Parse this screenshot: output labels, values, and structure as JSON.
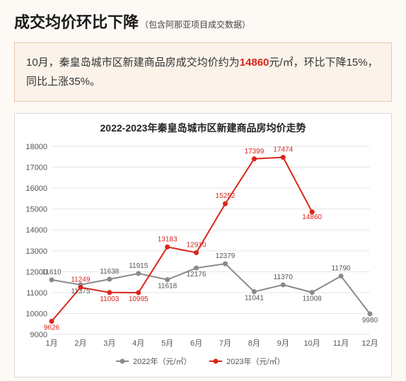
{
  "headline": {
    "main": "成交均价环比下降",
    "sub": "（包含阿那亚项目成交数据）"
  },
  "summary": {
    "pre": "10月，秦皇岛城市区新建商品房成交均价约为",
    "highlight": "14860",
    "post": "元/㎡，环比下降15%，同比上涨35%。"
  },
  "chart": {
    "title": "2022-2023年秦皇岛城市区新建商品房均价走势",
    "type": "line",
    "background_color": "#ffffff",
    "grid_color": "#e6e6e6",
    "categories": [
      "1月",
      "2月",
      "3月",
      "4月",
      "5月",
      "6月",
      "7月",
      "8月",
      "9月",
      "10月",
      "11月",
      "12月"
    ],
    "ylim": [
      9000,
      18000
    ],
    "ytick_step": 1000,
    "series": [
      {
        "name": "2022年（元/㎡）",
        "color": "#8a8a8a",
        "marker": "circle",
        "values": [
          11610,
          11375,
          11638,
          11915,
          11618,
          12176,
          12379,
          11041,
          11370,
          11008,
          11790,
          9980
        ],
        "label_y_offset": [
          -8,
          12,
          -8,
          -8,
          12,
          12,
          -8,
          12,
          -8,
          12,
          -8,
          12
        ]
      },
      {
        "name": "2023年（元/㎡）",
        "color": "#d9251c",
        "marker": "circle",
        "values": [
          9626,
          11249,
          11003,
          10995,
          13183,
          12910,
          15252,
          17399,
          17474,
          14860,
          null,
          null
        ],
        "label_y_offset": [
          12,
          -8,
          12,
          12,
          -8,
          -8,
          -8,
          -8,
          -8,
          10,
          0,
          0
        ]
      }
    ],
    "legend_position": "bottom",
    "label_fontsize": 10,
    "axis_fontsize": 11
  }
}
